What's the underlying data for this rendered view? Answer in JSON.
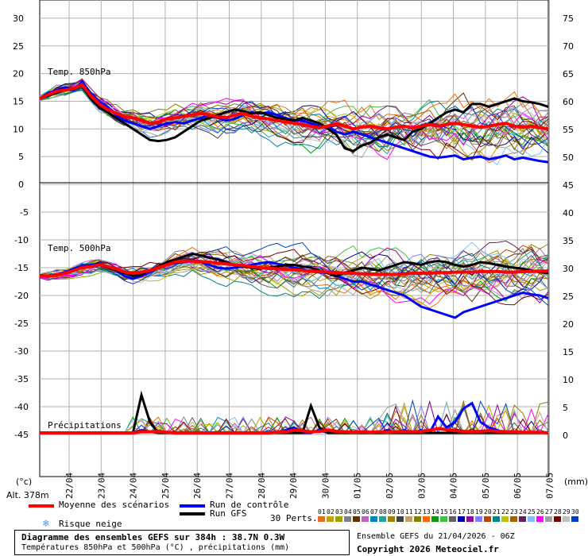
{
  "chart_data": [
    {
      "type": "line",
      "panel": "temp850",
      "title": "Temp. 850hPa",
      "left_axis_ticks": [
        30,
        25,
        20,
        15,
        10,
        5,
        0
      ],
      "right_axis_ticks": [
        75,
        70,
        65,
        60,
        55,
        50
      ],
      "ylim": [
        0,
        33
      ],
      "series": [
        {
          "name": "Moyenne des scénarios",
          "color": "#ff0000",
          "values": [
            15.5,
            16.2,
            16.8,
            17,
            17.3,
            18,
            16,
            14.5,
            13.5,
            12.8,
            12.3,
            12,
            11.5,
            11,
            11.2,
            11.8,
            12,
            12.3,
            12.5,
            12.8,
            12.5,
            12.2,
            12,
            12.5,
            12.8,
            12.3,
            12,
            11.8,
            11.5,
            11.3,
            11,
            10.8,
            10.5,
            10.2,
            10.5,
            11,
            10.5,
            10,
            10.3,
            10.5,
            10.2,
            10,
            10.3,
            10.5,
            10.2,
            10.5,
            10.8,
            10.5,
            10.8,
            11,
            10.8,
            10.5,
            10.3,
            10.5,
            10.8,
            11,
            10.5,
            10.3,
            10.5,
            10.2,
            10
          ]
        },
        {
          "name": "Run de contrôle",
          "color": "#0000ff",
          "values": [
            15.5,
            16.5,
            17,
            17.5,
            17,
            18.5,
            16.5,
            15,
            14,
            12.5,
            11.5,
            11,
            10.5,
            10,
            10.5,
            11,
            11.2,
            11,
            11.5,
            12,
            12.5,
            12,
            11.5,
            11.8,
            12.5,
            13,
            12.8,
            13,
            12.5,
            12,
            11.5,
            11.5,
            11,
            10.5,
            10.5,
            9.5,
            9,
            9.5,
            9,
            8.5,
            8,
            7.5,
            7,
            6.5,
            6,
            5.5,
            5,
            4.8,
            5,
            5.2,
            4.5,
            4.8,
            5,
            4.5,
            4.8,
            5.2,
            4.5,
            4.8,
            4.5,
            4.2,
            4
          ]
        },
        {
          "name": "Run GFS",
          "color": "#000000",
          "values": [
            15.5,
            16,
            16.5,
            17,
            17.2,
            17.8,
            15.5,
            14,
            13,
            12,
            11,
            10,
            9,
            8,
            7.8,
            8,
            8.5,
            9.5,
            10.5,
            11.5,
            12,
            12.5,
            13,
            13.5,
            13.2,
            12.8,
            13,
            12.5,
            12,
            11.8,
            11.5,
            12,
            11.5,
            11,
            10,
            9,
            6.5,
            6,
            7,
            7.5,
            8.5,
            9,
            8.5,
            8,
            9.5,
            10,
            11,
            12,
            13,
            13.5,
            13,
            14.5,
            14.5,
            14,
            14.5,
            15,
            15.5,
            15,
            14.8,
            14.5,
            14
          ]
        }
      ]
    },
    {
      "type": "line",
      "panel": "temp500",
      "title": "Temp. 500hPa",
      "left_axis_ticks": [
        -5,
        -10,
        -15,
        -20,
        -25,
        -30,
        -35,
        -40,
        -45
      ],
      "right_axis_ticks": [
        45,
        40,
        35,
        30,
        25,
        20,
        15,
        10,
        5,
        0
      ],
      "ylim": [
        -53,
        -0.5
      ],
      "series": [
        {
          "name": "Moyenne des scénarios",
          "color": "#ff0000",
          "values": [
            -16.5,
            -16.5,
            -16.3,
            -16,
            -15.5,
            -15,
            -14.8,
            -14.5,
            -14.8,
            -15.2,
            -15.8,
            -16,
            -15.8,
            -15.5,
            -15,
            -14.5,
            -14,
            -13.8,
            -13.8,
            -13.9,
            -14,
            -14.2,
            -14.3,
            -14.5,
            -14.6,
            -14.8,
            -15,
            -15.1,
            -15.2,
            -15.3,
            -15.4,
            -15.5,
            -15.6,
            -15.7,
            -15.8,
            -15.9,
            -16,
            -16,
            -16.1,
            -16.1,
            -16.2,
            -16.2,
            -16.2,
            -16.1,
            -16,
            -16,
            -16,
            -15.9,
            -15.9,
            -15.8,
            -15.8,
            -15.8,
            -15.7,
            -15.7,
            -15.7,
            -15.8,
            -15.8,
            -15.7,
            -15.7,
            -15.6,
            -15.6
          ]
        },
        {
          "name": "Run de contrôle",
          "color": "#0000ff",
          "values": [
            -16.5,
            -16.5,
            -16.2,
            -15.8,
            -15.2,
            -14.8,
            -14.5,
            -14.3,
            -14.8,
            -15.5,
            -16.5,
            -17,
            -16.5,
            -15.8,
            -15,
            -14.5,
            -14.2,
            -14,
            -13.8,
            -14,
            -14.5,
            -15,
            -15.2,
            -15,
            -14.8,
            -14.5,
            -14.2,
            -14,
            -14.3,
            -14.6,
            -15,
            -15.3,
            -15.6,
            -15.8,
            -16,
            -16.5,
            -17,
            -17.5,
            -17.5,
            -18,
            -18.5,
            -19,
            -19.5,
            -20,
            -21,
            -22,
            -22.5,
            -23,
            -23.5,
            -24,
            -23,
            -22.5,
            -22,
            -21.5,
            -21,
            -20.5,
            -20,
            -19.5,
            -19.8,
            -20,
            -20.5
          ]
        },
        {
          "name": "Run GFS",
          "color": "#000000",
          "values": [
            -16.5,
            -16.5,
            -16.2,
            -16,
            -15.5,
            -15,
            -14.8,
            -14.5,
            -15,
            -15.5,
            -16,
            -16.5,
            -16.2,
            -15.5,
            -14.8,
            -14,
            -13.5,
            -13,
            -12.5,
            -12.8,
            -13.2,
            -13.5,
            -14,
            -14.5,
            -14.8,
            -15,
            -15.2,
            -15,
            -14.8,
            -14.5,
            -14.5,
            -14.8,
            -15,
            -15.5,
            -16,
            -16.5,
            -16,
            -15.5,
            -15,
            -15.2,
            -15.5,
            -15,
            -14.5,
            -14,
            -14.2,
            -14.5,
            -14,
            -13.8,
            -14,
            -14.5,
            -14.8,
            -14.5,
            -14,
            -14.2,
            -14.5,
            -14.8,
            -15,
            -15.2,
            -15.5,
            -15.8,
            -16
          ]
        }
      ]
    },
    {
      "type": "line",
      "panel": "precip",
      "title": "Précipitations",
      "unit": "mm",
      "series": [
        {
          "name": "Moyenne des scénarios",
          "color": "#ff0000",
          "values": [
            0,
            0,
            0,
            0,
            0,
            0,
            0,
            0,
            0,
            0,
            0,
            0,
            0.2,
            0.2,
            0.3,
            0.1,
            0,
            0,
            0,
            0,
            0,
            0,
            0,
            0,
            0,
            0,
            0,
            0,
            0.1,
            0.2,
            0.5,
            0.4,
            0.2,
            0.3,
            0.5,
            0.3,
            0.2,
            0.1,
            0.2,
            0.1,
            0.2,
            0.1,
            0.2,
            0.3,
            0.2,
            0.3,
            0.5,
            0.8,
            0.6,
            0.4,
            0.3,
            0.2,
            0.3,
            0.4,
            0.3,
            0.2,
            0.2,
            0.1,
            0.1,
            0.1,
            0
          ]
        },
        {
          "name": "Run de contrôle",
          "color": "#0000ff",
          "values": [
            0,
            0,
            0,
            0,
            0,
            0,
            0,
            0,
            0,
            0,
            0,
            0,
            0.5,
            0.2,
            0,
            0,
            0,
            0,
            0,
            0,
            0,
            0,
            0,
            0,
            0,
            0,
            0,
            0,
            0,
            0.5,
            1,
            0,
            0,
            0.5,
            0,
            0,
            0,
            0,
            0,
            0,
            0,
            0.5,
            0,
            0.5,
            0,
            0.5,
            0,
            3,
            1,
            2,
            4.5,
            5.5,
            2,
            1,
            0.5,
            0,
            0,
            0,
            0,
            0,
            0
          ]
        },
        {
          "name": "Run GFS",
          "color": "#000000",
          "values": [
            0,
            0,
            0,
            0,
            0,
            0,
            0,
            0,
            0,
            0,
            0,
            0,
            7,
            2,
            0,
            0,
            0,
            0,
            0,
            0,
            0,
            0,
            0,
            0,
            0,
            0,
            0,
            0,
            0,
            0,
            0,
            0,
            5,
            1,
            0,
            0,
            0,
            0,
            0,
            0,
            0,
            0,
            0,
            0,
            0,
            0,
            0,
            0,
            0,
            0,
            0,
            0,
            0,
            0,
            0,
            0,
            0,
            0,
            0,
            0,
            0
          ]
        }
      ]
    }
  ],
  "x_axis": {
    "dates": [
      "22/04",
      "23/04",
      "24/04",
      "25/04",
      "26/04",
      "27/04",
      "28/04",
      "29/04",
      "30/04",
      "01/05",
      "02/05",
      "03/05",
      "04/05",
      "05/05",
      "06/05",
      "07/05"
    ]
  },
  "axis_units": {
    "left": "(°c)",
    "right": "(mm)"
  },
  "altitude": "Alt. 378m",
  "legend": {
    "mean": "Moyenne des scénarios",
    "control": "Run de contrôle",
    "gfs": "Run GFS",
    "snow": "Risque neige",
    "perts_label": "30 Perts.",
    "perts_numbers": [
      "01",
      "02",
      "03",
      "04",
      "05",
      "06",
      "07",
      "08",
      "09",
      "10",
      "11",
      "12",
      "13",
      "14",
      "15",
      "16",
      "17",
      "18",
      "19",
      "20",
      "21",
      "22",
      "23",
      "24",
      "25",
      "26",
      "27",
      "28",
      "29",
      "30"
    ],
    "perts_colors": [
      "#e07020",
      "#c8a000",
      "#a0a000",
      "#808080",
      "#603000",
      "#c060c0",
      "#0080c0",
      "#20a0a0",
      "#a08000",
      "#404040",
      "#c0a060",
      "#808000",
      "#ff6600",
      "#00a000",
      "#40c040",
      "#606060",
      "#0000a0",
      "#a000a0",
      "#8080ff",
      "#c04000",
      "#008080",
      "#c0c000",
      "#a06000",
      "#602060",
      "#80c0ff",
      "#ff00ff",
      "#a0a0a0",
      "#800000",
      "#c0c0c0",
      "#0040c0"
    ]
  },
  "colors": {
    "mean": "#ff0000",
    "control": "#0000ff",
    "gfs": "#000000",
    "grid": "#b0b0b0",
    "snow": "#3c9cff"
  },
  "footer": {
    "title": "Diagramme des ensembles GEFS sur 384h : 38.7N 0.3W",
    "subtitle": "Températures 850hPa et 500hPa (°C) , précipitations (mm)",
    "run": "Ensemble GEFS du 21/04/2026 - 06Z",
    "copyright": "Copyright 2026 Meteociel.fr"
  }
}
